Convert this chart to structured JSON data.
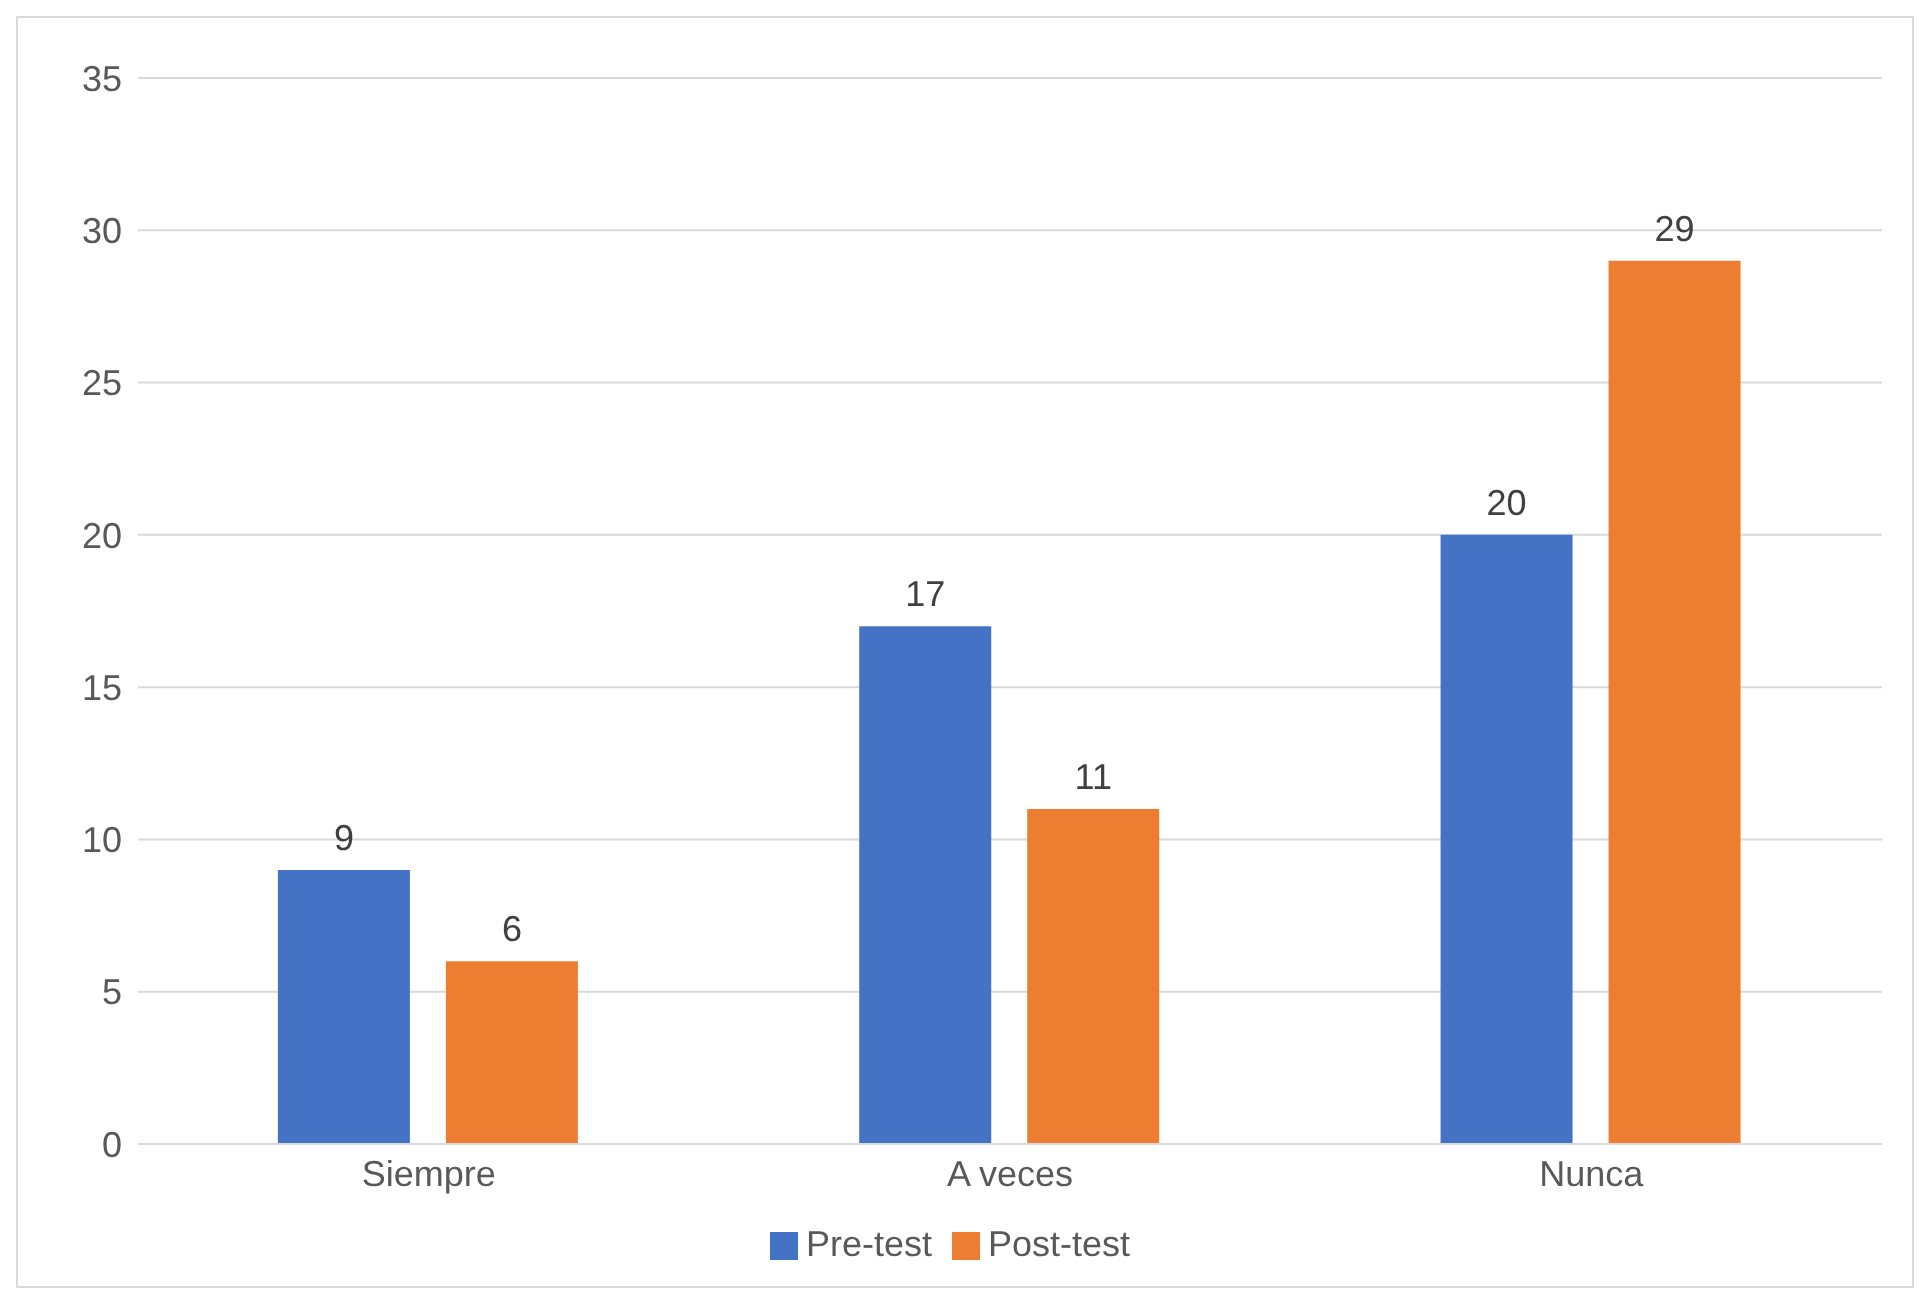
{
  "chart_data": {
    "type": "bar",
    "categories": [
      "Siempre",
      "A veces",
      "Nunca"
    ],
    "series": [
      {
        "name": "Pre-test",
        "color": "#4472c4",
        "values": [
          9,
          17,
          20
        ]
      },
      {
        "name": "Post-test",
        "color": "#ed7d31",
        "values": [
          6,
          11,
          29
        ]
      }
    ],
    "ylim": [
      0,
      35
    ],
    "yticks": [
      0,
      5,
      10,
      15,
      20,
      25,
      30,
      35
    ],
    "grid": "y",
    "legend": "bottom",
    "data_labels": true
  }
}
